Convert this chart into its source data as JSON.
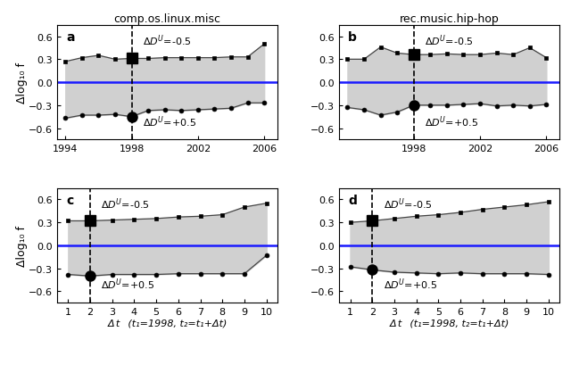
{
  "panel_a": {
    "title": "comp.os.linux.misc",
    "label": "a",
    "x_years": [
      1994,
      1995,
      1996,
      1997,
      1998,
      1999,
      2000,
      2001,
      2002,
      2003,
      2004,
      2005,
      2006
    ],
    "upper": [
      0.27,
      0.32,
      0.35,
      0.3,
      0.31,
      0.31,
      0.32,
      0.32,
      0.32,
      0.32,
      0.33,
      0.33,
      0.5
    ],
    "lower": [
      -0.47,
      -0.43,
      -0.43,
      -0.42,
      -0.45,
      -0.37,
      -0.36,
      -0.37,
      -0.36,
      -0.35,
      -0.34,
      -0.27,
      -0.27
    ],
    "vline_x": 1998,
    "xlim": [
      1993.5,
      2006.8
    ],
    "xticks": [
      1994,
      1998,
      2002,
      2006
    ]
  },
  "panel_b": {
    "title": "rec.music.hip-hop",
    "label": "b",
    "x_years": [
      1994,
      1995,
      1996,
      1997,
      1998,
      1999,
      2000,
      2001,
      2002,
      2003,
      2004,
      2005,
      2006
    ],
    "upper": [
      0.3,
      0.3,
      0.46,
      0.38,
      0.36,
      0.36,
      0.37,
      0.36,
      0.36,
      0.38,
      0.36,
      0.45,
      0.32
    ],
    "lower": [
      -0.33,
      -0.36,
      -0.43,
      -0.39,
      -0.3,
      -0.3,
      -0.3,
      -0.29,
      -0.28,
      -0.31,
      -0.3,
      -0.31,
      -0.29
    ],
    "vline_x": 1998,
    "xlim": [
      1993.5,
      2006.8
    ],
    "xticks": [
      1998,
      2002,
      2006
    ]
  },
  "panel_c": {
    "label": "c",
    "x_dt": [
      1,
      2,
      3,
      4,
      5,
      6,
      7,
      8,
      9,
      10
    ],
    "upper": [
      0.32,
      0.32,
      0.33,
      0.34,
      0.35,
      0.37,
      0.38,
      0.4,
      0.5,
      0.55
    ],
    "lower": [
      -0.38,
      -0.4,
      -0.38,
      -0.38,
      -0.38,
      -0.37,
      -0.37,
      -0.37,
      -0.37,
      -0.13
    ],
    "vline_x": 2,
    "xlabel": "Δ t  (t₁=1998, t₂=t₁+Δt)",
    "xlim": [
      0.5,
      10.5
    ],
    "xticks": [
      1,
      2,
      3,
      4,
      5,
      6,
      7,
      8,
      9,
      10
    ]
  },
  "panel_d": {
    "label": "d",
    "x_dt": [
      1,
      2,
      3,
      4,
      5,
      6,
      7,
      8,
      9,
      10
    ],
    "upper": [
      0.3,
      0.32,
      0.35,
      0.38,
      0.4,
      0.43,
      0.47,
      0.5,
      0.53,
      0.57
    ],
    "lower": [
      -0.28,
      -0.32,
      -0.35,
      -0.36,
      -0.37,
      -0.36,
      -0.37,
      -0.37,
      -0.37,
      -0.38
    ],
    "vline_x": 2,
    "xlabel": "Δ t  (t₁=1998, t₂=t₁+Δt)",
    "xlim": [
      0.5,
      10.5
    ],
    "xticks": [
      1,
      2,
      3,
      4,
      5,
      6,
      7,
      8,
      9,
      10
    ]
  },
  "ylim": [
    -0.75,
    0.75
  ],
  "yticks": [
    -0.6,
    -0.3,
    0.0,
    0.3,
    0.6
  ],
  "ylabel": "Δlog₁₀ f",
  "fill_color": "#d0d0d0",
  "line_color": "#444444",
  "blue_line_color": "#1a1aff",
  "vline_color": "black"
}
